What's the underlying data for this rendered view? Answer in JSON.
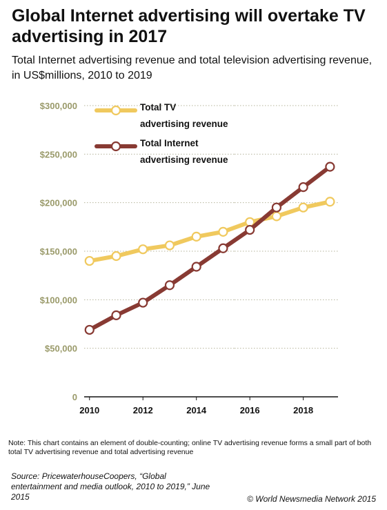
{
  "title": "Global Internet advertising will overtake TV advertising in 2017",
  "subtitle": "Total Internet advertising revenue and total television advertising revenue, in US$millions, 2010 to 2019",
  "note": "Note: This chart contains an element of double-counting; online TV advertising revenue forms a small part of both total TV advertising revenue and total advertising revenue",
  "source": "Source: PricewaterhouseCoopers, “Global entertainment and media outlook, 2010 to 2019,” June 2015",
  "copyright": "© World Newsmedia Network 2015",
  "colors": {
    "tv": "#F0C95E",
    "internet": "#883A33",
    "ytick": "#9A9A6A",
    "grid": "#B5B39A",
    "axis": "#111111"
  },
  "chart_data": {
    "type": "line",
    "x": [
      2010,
      2011,
      2012,
      2013,
      2014,
      2015,
      2016,
      2017,
      2018,
      2019
    ],
    "xticks": [
      2010,
      2012,
      2014,
      2016,
      2018
    ],
    "xtick_labels": [
      "2010",
      "2012",
      "2014",
      "2016",
      "2018"
    ],
    "yticks": [
      0,
      50000,
      100000,
      150000,
      200000,
      250000,
      300000
    ],
    "ytick_labels": [
      "0",
      "$50,000",
      "$100,000",
      "$150,000",
      "$200,000",
      "$250,000",
      "$300,000"
    ],
    "ylim": [
      0,
      300000
    ],
    "xlim": [
      2009.8,
      2019.3
    ],
    "xlabel": "",
    "ylabel": "",
    "grid": true,
    "legend_position": "top-left",
    "series": [
      {
        "key": "tv",
        "legend_label": [
          "Total TV",
          "advertising revenue"
        ],
        "values": [
          140000,
          145000,
          152000,
          156000,
          165000,
          170000,
          180000,
          186000,
          195000,
          201000
        ]
      },
      {
        "key": "internet",
        "legend_label": [
          "Total Internet",
          "advertising revenue"
        ],
        "values": [
          69000,
          84000,
          97000,
          115000,
          134000,
          153000,
          172000,
          195000,
          216000,
          237000
        ]
      }
    ]
  }
}
